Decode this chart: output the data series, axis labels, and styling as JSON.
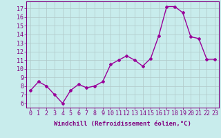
{
  "x": [
    0,
    1,
    2,
    3,
    4,
    5,
    6,
    7,
    8,
    9,
    10,
    11,
    12,
    13,
    14,
    15,
    16,
    17,
    18,
    19,
    20,
    21,
    22,
    23
  ],
  "y": [
    7.5,
    8.5,
    8.0,
    7.0,
    6.0,
    7.5,
    8.2,
    7.8,
    8.0,
    8.5,
    10.5,
    11.0,
    11.5,
    11.0,
    10.3,
    11.2,
    13.8,
    17.2,
    17.2,
    16.5,
    13.7,
    13.5,
    11.1,
    11.1
  ],
  "line_color": "#990099",
  "marker": "D",
  "marker_size": 2,
  "linewidth": 1.0,
  "bg_color": "#c8ecec",
  "grid_color": "#b0c8c8",
  "xlabel": "Windchill (Refroidissement éolien,°C)",
  "ylabel_ticks": [
    6,
    7,
    8,
    9,
    10,
    11,
    12,
    13,
    14,
    15,
    16,
    17
  ],
  "ylim": [
    5.5,
    17.8
  ],
  "xlim": [
    -0.5,
    23.5
  ],
  "xlabel_fontsize": 6.5,
  "tick_fontsize": 6.0,
  "tick_color": "#800080",
  "spine_color": "#800080"
}
